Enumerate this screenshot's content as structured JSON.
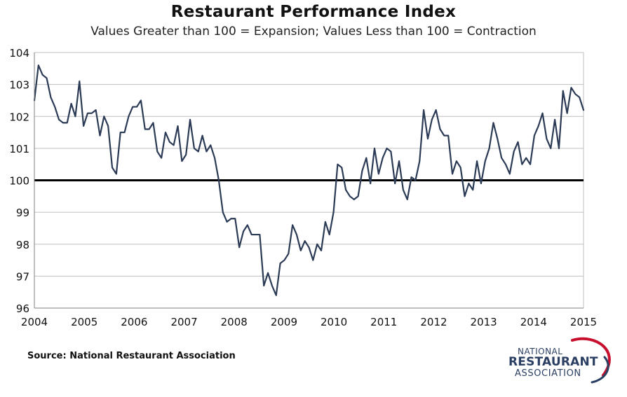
{
  "chart_data": {
    "type": "line",
    "title": "Restaurant Performance Index",
    "subtitle": "Values Greater than 100 = Expansion; Values Less than 100 = Contraction",
    "xlabel": "",
    "ylabel": "",
    "xlim": [
      2004,
      2015
    ],
    "ylim": [
      96,
      104
    ],
    "x_ticks": [
      "2004",
      "2005",
      "2006",
      "2007",
      "2008",
      "2009",
      "2010",
      "2011",
      "2012",
      "2013",
      "2014",
      "2015"
    ],
    "y_ticks": [
      "96",
      "97",
      "98",
      "99",
      "100",
      "101",
      "102",
      "103",
      "104"
    ],
    "reference_line": 100,
    "grid": true,
    "series": [
      {
        "name": "Restaurant Performance Index",
        "color": "#2b3a55",
        "start_year": 2004,
        "interval": "monthly",
        "values": [
          102.5,
          103.6,
          103.3,
          103.2,
          102.6,
          102.3,
          101.9,
          101.8,
          101.8,
          102.4,
          102.0,
          103.1,
          101.7,
          102.1,
          102.1,
          102.2,
          101.4,
          102.0,
          101.7,
          100.4,
          100.2,
          101.5,
          101.5,
          102.0,
          102.3,
          102.3,
          102.5,
          101.6,
          101.6,
          101.8,
          100.9,
          100.7,
          101.5,
          101.2,
          101.1,
          101.7,
          100.6,
          100.8,
          101.9,
          101.0,
          100.9,
          101.4,
          100.9,
          101.1,
          100.7,
          100.0,
          99.0,
          98.7,
          98.8,
          98.8,
          97.9,
          98.4,
          98.6,
          98.3,
          98.3,
          98.3,
          96.7,
          97.1,
          96.7,
          96.4,
          97.4,
          97.5,
          97.7,
          98.6,
          98.3,
          97.8,
          98.1,
          97.9,
          97.5,
          98.0,
          97.8,
          98.7,
          98.3,
          99.0,
          100.5,
          100.4,
          99.7,
          99.5,
          99.4,
          99.5,
          100.3,
          100.7,
          99.9,
          101.0,
          100.2,
          100.7,
          101.0,
          100.9,
          99.9,
          100.6,
          99.7,
          99.4,
          100.1,
          100.0,
          100.6,
          102.2,
          101.3,
          101.9,
          102.2,
          101.6,
          101.4,
          101.4,
          100.2,
          100.6,
          100.4,
          99.5,
          99.9,
          99.7,
          100.6,
          99.9,
          100.6,
          101.0,
          101.8,
          101.3,
          100.7,
          100.5,
          100.2,
          100.9,
          101.2,
          100.5,
          100.7,
          100.5,
          101.4,
          101.7,
          102.1,
          101.3,
          101.0,
          101.9,
          101.0,
          102.8,
          102.1,
          102.9,
          102.7,
          102.6,
          102.2
        ]
      }
    ]
  },
  "footer": {
    "source": "Source: National Restaurant Association"
  },
  "logo": {
    "line1": "NATIONAL",
    "line2": "RESTAURANT",
    "line3": "ASSOCIATION",
    "colors": {
      "navy": "#2b3f63",
      "red": "#c8102e"
    }
  }
}
